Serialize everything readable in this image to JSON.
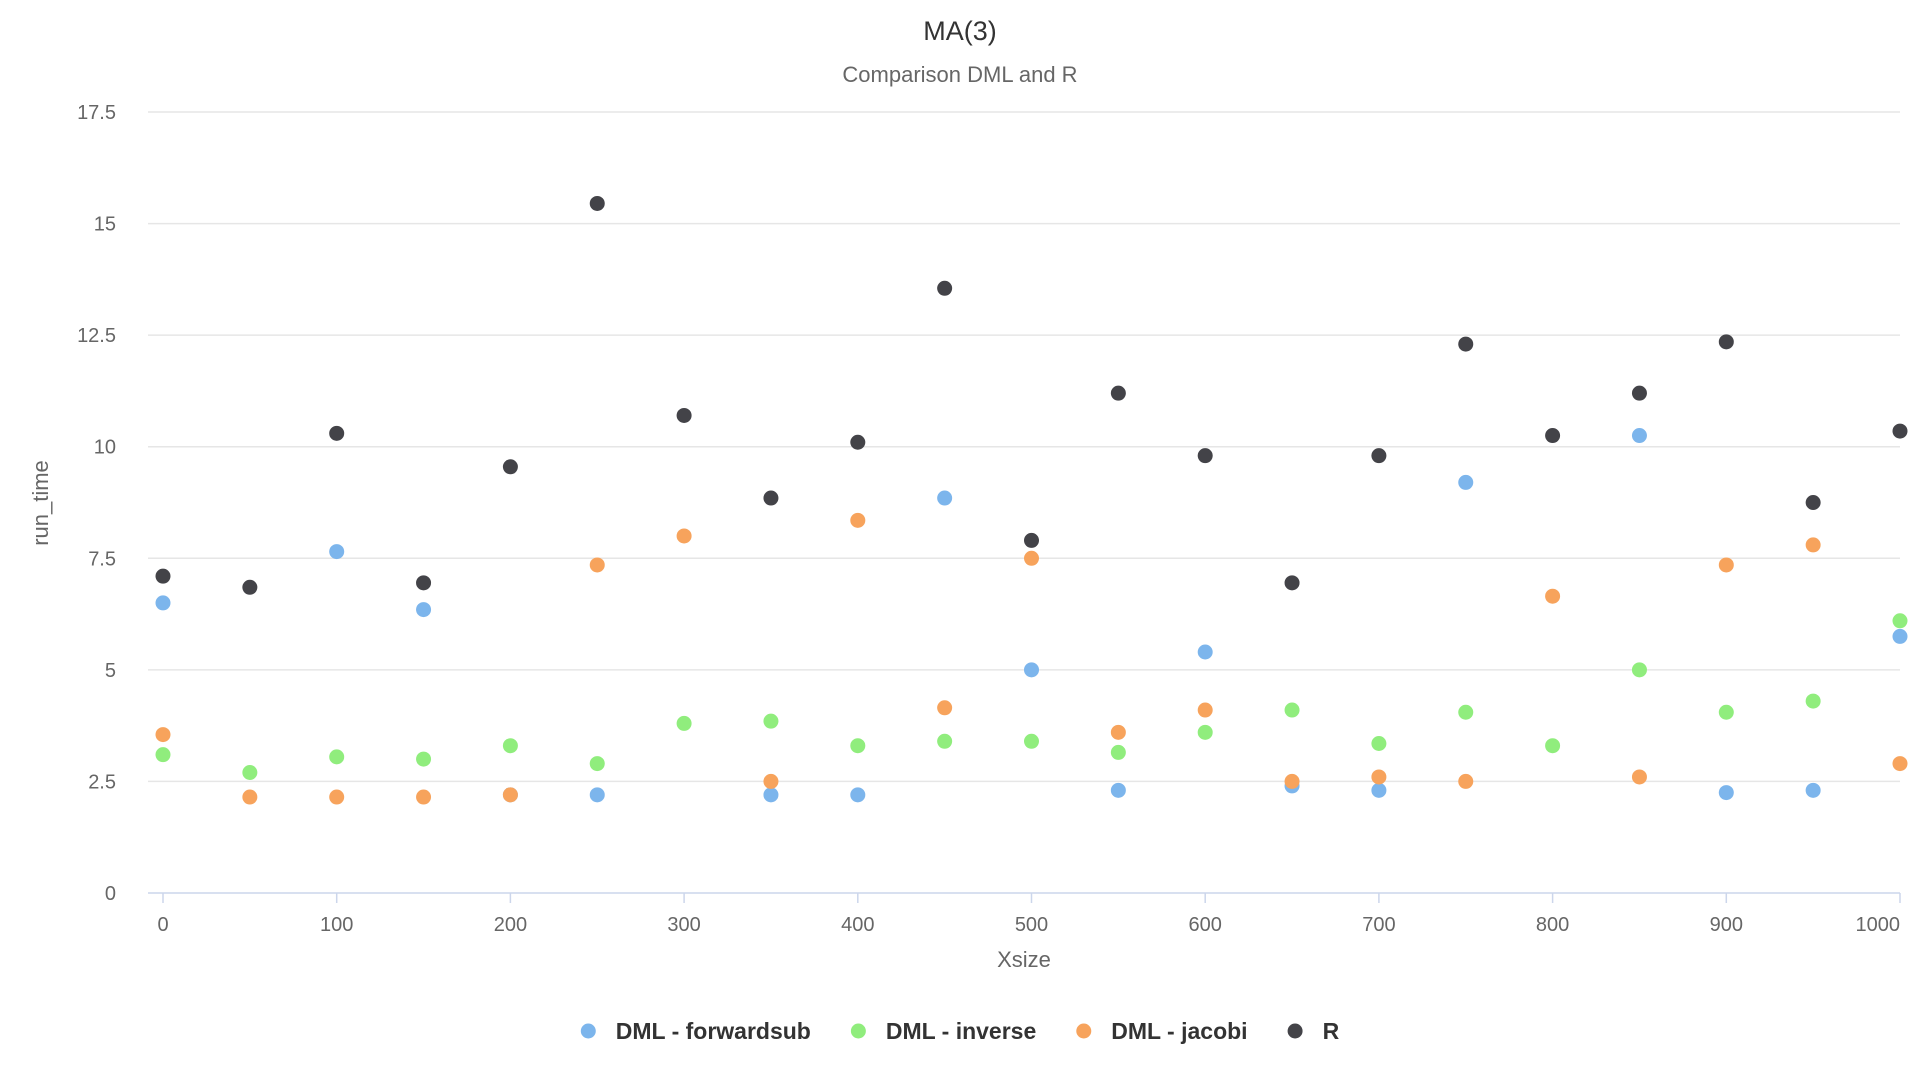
{
  "chart_data": {
    "type": "scatter",
    "title": "MA(3)",
    "subtitle": "Comparison DML and R",
    "xlabel": "Xsize",
    "ylabel": "run_time",
    "xlim": [
      0,
      1000
    ],
    "ylim": [
      0,
      17.5
    ],
    "x_ticks": [
      0,
      100,
      200,
      300,
      400,
      500,
      600,
      700,
      800,
      900,
      1000
    ],
    "y_ticks": [
      0,
      2.5,
      5,
      7.5,
      10,
      12.5,
      15,
      17.5
    ],
    "x_tick_labels": [
      "0",
      "100",
      "200",
      "300",
      "400",
      "500",
      "600",
      "700",
      "800",
      "900",
      "1000"
    ],
    "y_tick_labels": [
      "0",
      "2.5",
      "5",
      "7.5",
      "10",
      "12.5",
      "15",
      "17.5"
    ],
    "grid": true,
    "legend_position": "bottom-center",
    "series": [
      {
        "name": "DML - forwardsub",
        "color": "#7cb5ec",
        "points": [
          [
            0,
            6.5
          ],
          [
            100,
            7.65
          ],
          [
            150,
            6.35
          ],
          [
            200,
            2.2
          ],
          [
            250,
            2.2
          ],
          [
            350,
            2.2
          ],
          [
            400,
            2.2
          ],
          [
            450,
            8.85
          ],
          [
            500,
            5.0
          ],
          [
            550,
            2.3
          ],
          [
            600,
            5.4
          ],
          [
            650,
            2.4
          ],
          [
            700,
            2.3
          ],
          [
            750,
            9.2
          ],
          [
            850,
            10.25
          ],
          [
            900,
            2.25
          ],
          [
            950,
            2.3
          ],
          [
            1000,
            5.75
          ]
        ]
      },
      {
        "name": "DML - inverse",
        "color": "#90ed7d",
        "points": [
          [
            0,
            3.1
          ],
          [
            50,
            2.7
          ],
          [
            100,
            3.05
          ],
          [
            150,
            3.0
          ],
          [
            200,
            3.3
          ],
          [
            250,
            2.9
          ],
          [
            300,
            3.8
          ],
          [
            350,
            3.85
          ],
          [
            400,
            3.3
          ],
          [
            450,
            3.4
          ],
          [
            500,
            3.4
          ],
          [
            550,
            3.15
          ],
          [
            600,
            3.6
          ],
          [
            650,
            4.1
          ],
          [
            700,
            3.35
          ],
          [
            750,
            4.05
          ],
          [
            800,
            3.3
          ],
          [
            850,
            5.0
          ],
          [
            900,
            4.05
          ],
          [
            950,
            4.3
          ],
          [
            1000,
            6.1
          ]
        ]
      },
      {
        "name": "DML - jacobi",
        "color": "#f7a35c",
        "points": [
          [
            0,
            3.55
          ],
          [
            50,
            2.15
          ],
          [
            100,
            2.15
          ],
          [
            150,
            2.15
          ],
          [
            200,
            2.2
          ],
          [
            250,
            7.35
          ],
          [
            300,
            8.0
          ],
          [
            350,
            2.5
          ],
          [
            400,
            8.35
          ],
          [
            450,
            4.15
          ],
          [
            500,
            7.5
          ],
          [
            550,
            3.6
          ],
          [
            600,
            4.1
          ],
          [
            650,
            2.5
          ],
          [
            700,
            2.6
          ],
          [
            750,
            2.5
          ],
          [
            800,
            6.65
          ],
          [
            850,
            2.6
          ],
          [
            900,
            7.35
          ],
          [
            950,
            7.8
          ],
          [
            1000,
            2.9
          ]
        ]
      },
      {
        "name": "R",
        "color": "#434348",
        "points": [
          [
            0,
            7.1
          ],
          [
            50,
            6.85
          ],
          [
            100,
            10.3
          ],
          [
            150,
            6.95
          ],
          [
            200,
            9.55
          ],
          [
            250,
            15.45
          ],
          [
            300,
            10.7
          ],
          [
            350,
            8.85
          ],
          [
            400,
            10.1
          ],
          [
            450,
            13.55
          ],
          [
            500,
            7.9
          ],
          [
            550,
            11.2
          ],
          [
            600,
            9.8
          ],
          [
            650,
            6.95
          ],
          [
            700,
            9.8
          ],
          [
            750,
            12.3
          ],
          [
            800,
            10.25
          ],
          [
            850,
            11.2
          ],
          [
            900,
            12.35
          ],
          [
            950,
            8.75
          ],
          [
            1000,
            10.35
          ]
        ]
      }
    ]
  }
}
